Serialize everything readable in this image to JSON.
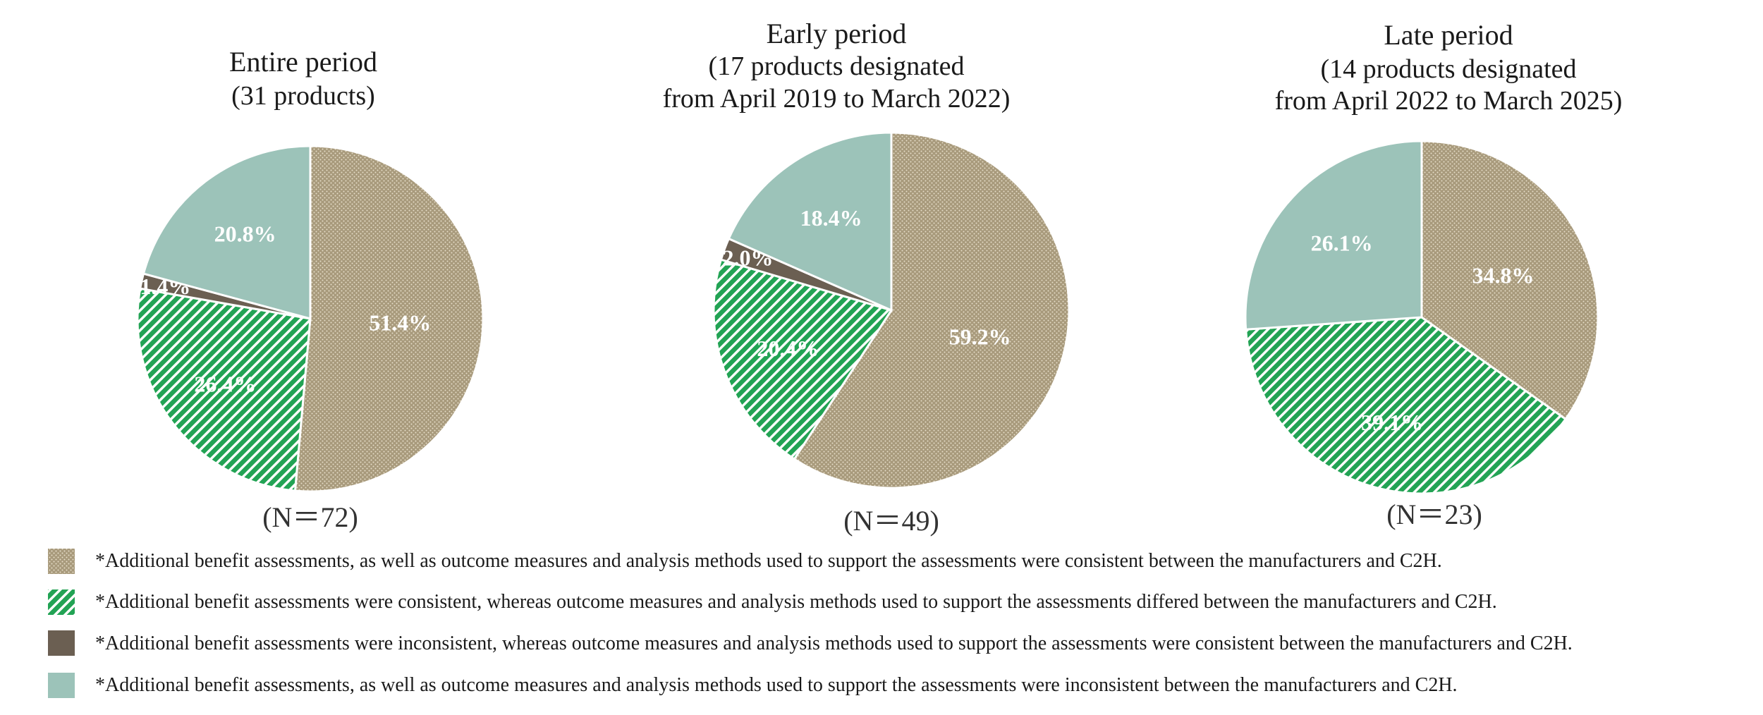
{
  "chart_data": [
    {
      "type": "pie",
      "title": "Entire period",
      "subtitle": [
        "(31 products)"
      ],
      "n_label": "(N＝72)",
      "series": [
        "consistent",
        "outcome-differed",
        "assessment-inconsistent",
        "all-inconsistent"
      ],
      "slices": [
        {
          "category": "consistent",
          "value": 51.4,
          "label": "51.4%"
        },
        {
          "category": "outcome-differed",
          "value": 26.4,
          "label": "26.4%"
        },
        {
          "category": "assessment-inconsistent",
          "value": 1.4,
          "label": "1.4%"
        },
        {
          "category": "all-inconsistent",
          "value": 20.8,
          "label": "20.8%"
        }
      ]
    },
    {
      "type": "pie",
      "title": "Early period",
      "subtitle": [
        "(17 products designated",
        "from April 2019 to March 2022)"
      ],
      "n_label": "(N＝49)",
      "slices": [
        {
          "category": "consistent",
          "value": 59.2,
          "label": "59.2%"
        },
        {
          "category": "outcome-differed",
          "value": 20.4,
          "label": "20.4%"
        },
        {
          "category": "assessment-inconsistent",
          "value": 2.0,
          "label": "2.0%"
        },
        {
          "category": "all-inconsistent",
          "value": 18.4,
          "label": "18.4%"
        }
      ]
    },
    {
      "type": "pie",
      "title": "Late period",
      "subtitle": [
        "(14 products designated",
        "from April 2022 to March 2025)"
      ],
      "n_label": "(N＝23)",
      "slices": [
        {
          "category": "consistent",
          "value": 34.8,
          "label": "34.8%"
        },
        {
          "category": "outcome-differed",
          "value": 39.1,
          "label": "39.1%"
        },
        {
          "category": "all-inconsistent",
          "value": 26.1,
          "label": "26.1%"
        }
      ]
    }
  ],
  "legend": [
    {
      "category": "consistent",
      "text": "*Additional benefit assessments, as well as outcome measures and analysis methods used to support the assessments were consistent between the manufacturers and C2H."
    },
    {
      "category": "outcome-differed",
      "text": "*Additional benefit assessments were consistent, whereas outcome measures and analysis methods used to support the assessments differed between the manufacturers and C2H."
    },
    {
      "category": "assessment-inconsistent",
      "text": "*Additional benefit assessments were inconsistent, whereas outcome measures and analysis methods used to support the assessments were consistent between the manufacturers and C2H."
    },
    {
      "category": "all-inconsistent",
      "text": "*Additional benefit assessments, as well as outcome measures and analysis methods used to support the assessments were inconsistent between the manufacturers and C2H."
    }
  ],
  "colors": {
    "consistent_base": "#a89a7c",
    "consistent_dot": "#e6ddc8",
    "outcome_base": "#22a354",
    "outcome_stripe": "#ffffff",
    "assessment_inconsistent": "#6b5f52",
    "all_inconsistent": "#9cc3b9"
  }
}
